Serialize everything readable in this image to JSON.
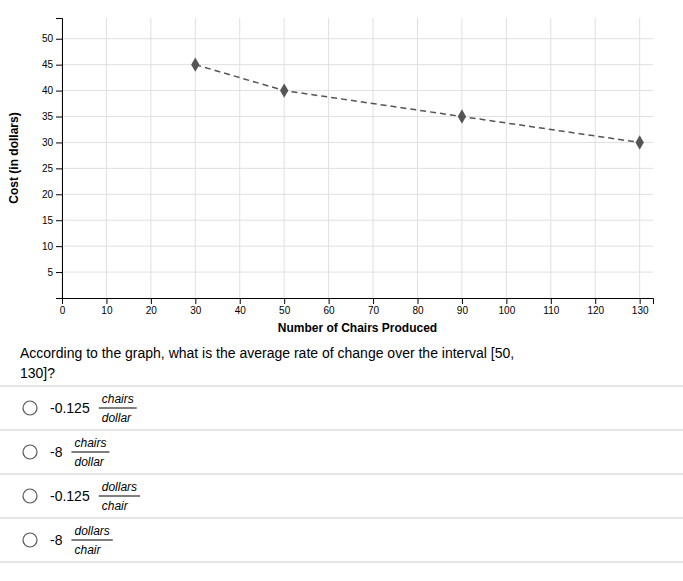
{
  "chart_data": {
    "type": "line",
    "x": [
      30,
      50,
      90,
      130
    ],
    "values": [
      45,
      40,
      35,
      30
    ],
    "xlim": [
      0,
      133
    ],
    "ylim": [
      0,
      54
    ],
    "xticks": [
      0,
      10,
      20,
      30,
      40,
      50,
      60,
      70,
      80,
      90,
      100,
      110,
      120,
      130
    ],
    "yticks": [
      5,
      10,
      15,
      20,
      25,
      30,
      35,
      40,
      45,
      50
    ],
    "xlabel": "Number of Chairs Produced",
    "ylabel": "Cost (in dollars)",
    "color": "#555555",
    "marker": "diamond",
    "line_style": "dashed",
    "grid": true
  },
  "question": [
    "According to the graph, what is the average rate of change over the interval [50,",
    "130]?"
  ],
  "choices": [
    {
      "number": "-0.125",
      "numerator": "chairs",
      "denominator": "dollar"
    },
    {
      "number": "-8",
      "numerator": "chairs",
      "denominator": "dollar"
    },
    {
      "number": "-0.125",
      "numerator": "dollars",
      "denominator": "chair"
    },
    {
      "number": "-8",
      "numerator": "dollars",
      "denominator": "chair"
    }
  ]
}
